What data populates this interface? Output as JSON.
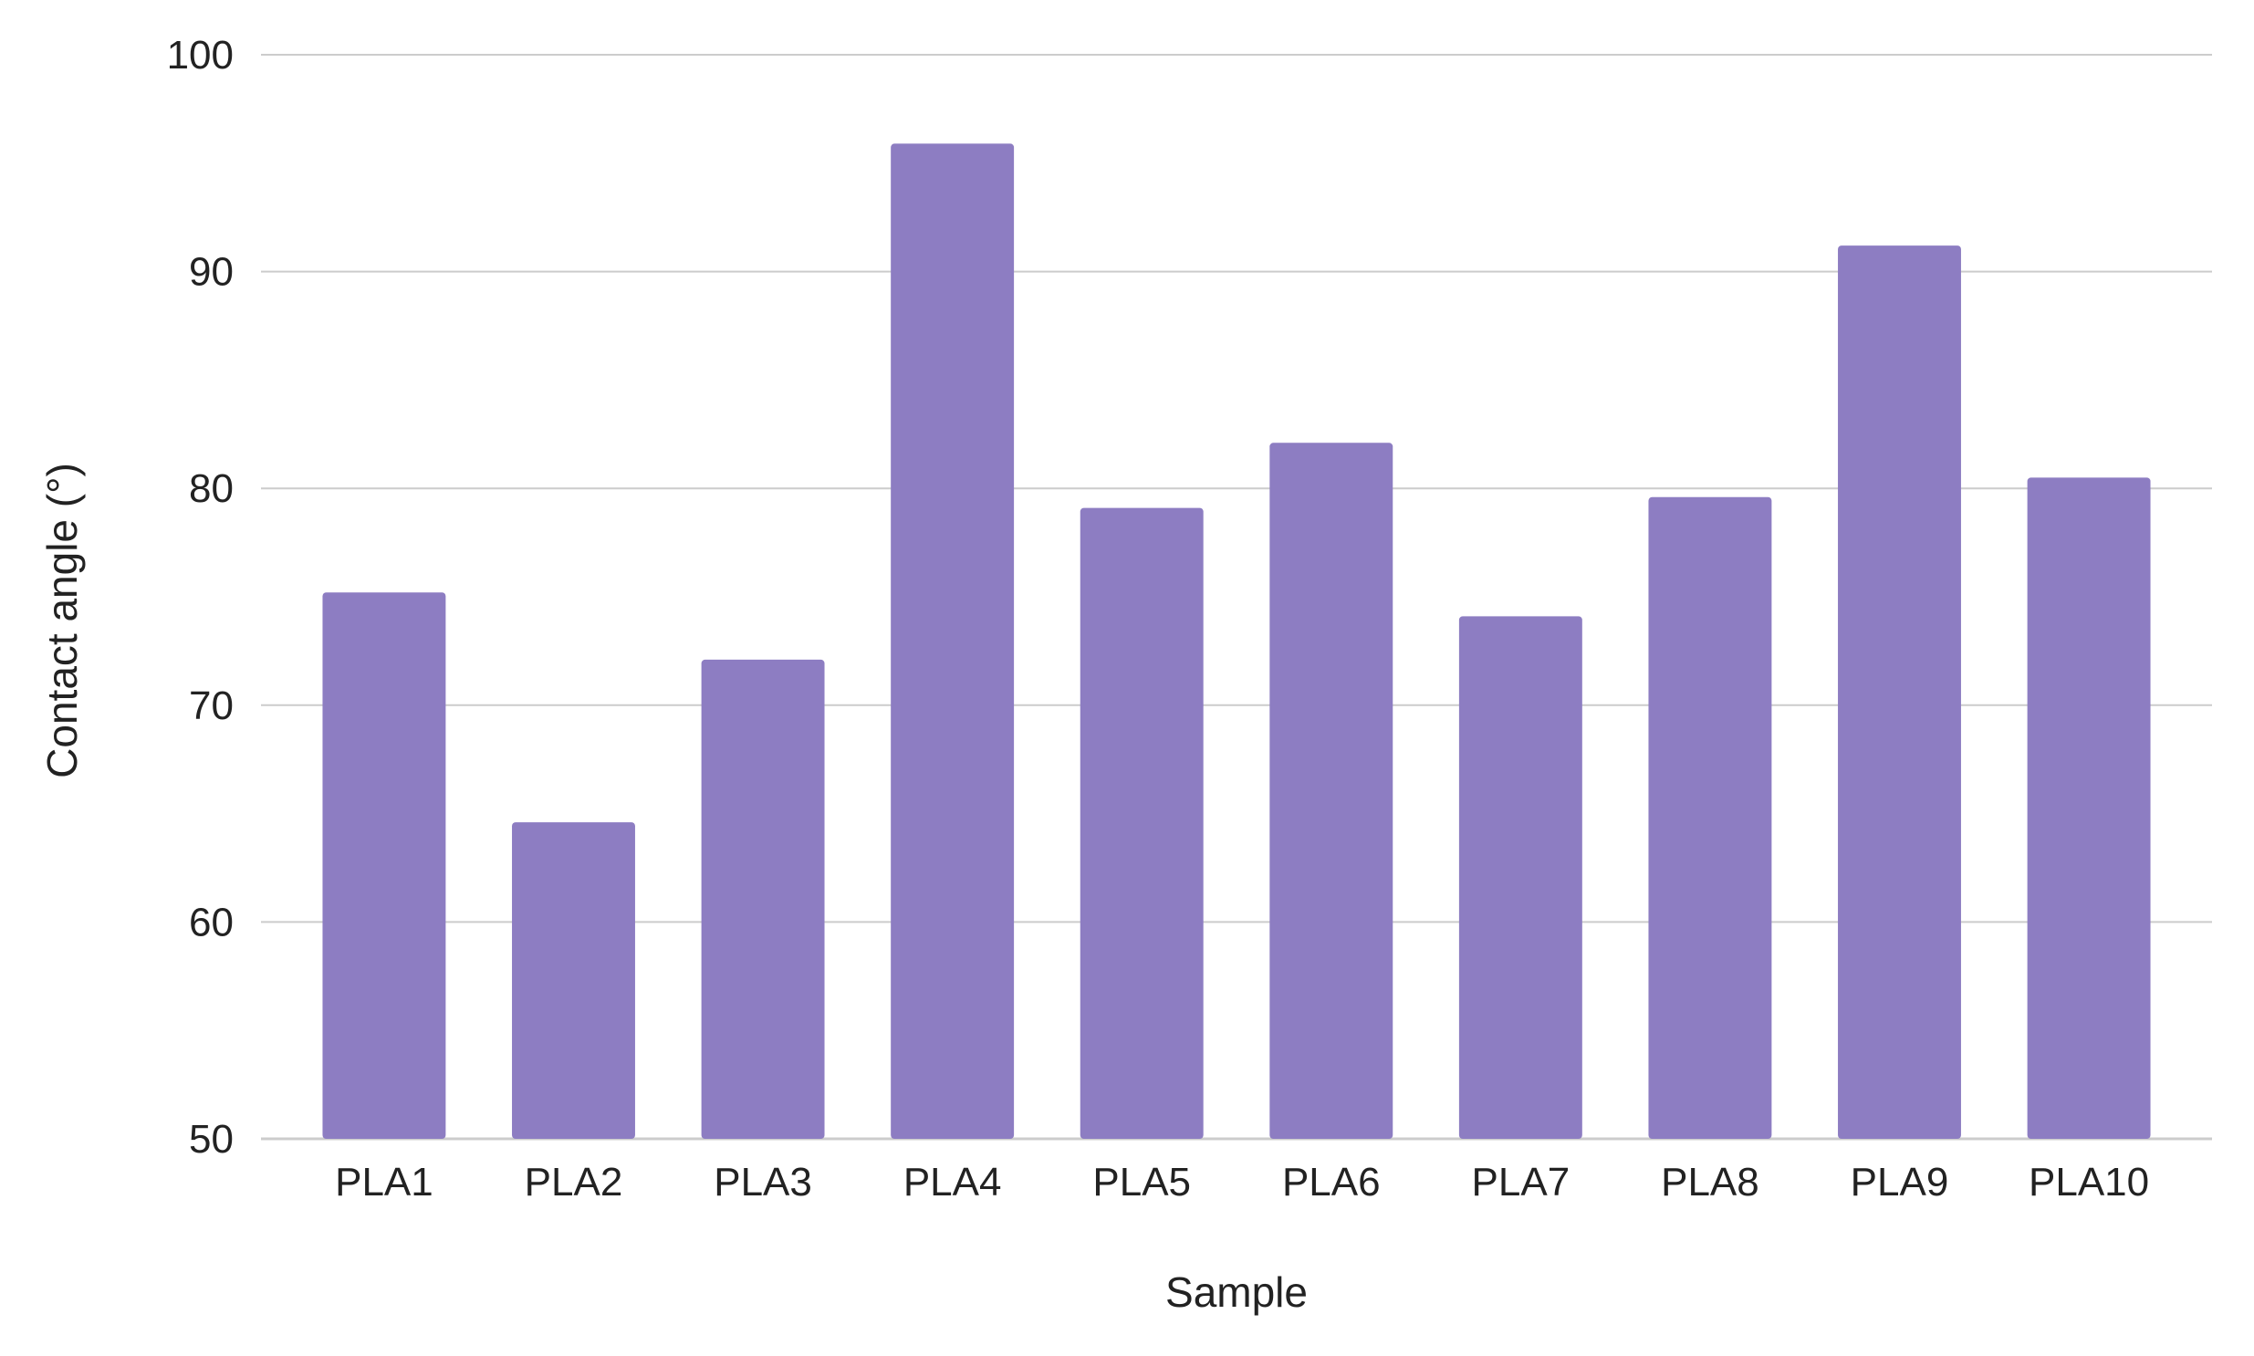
{
  "chart_data": {
    "type": "bar",
    "title": "",
    "xlabel": "Sample",
    "ylabel": "Contact angle (°)",
    "categories": [
      "PLA1",
      "PLA2",
      "PLA3",
      "PLA4",
      "PLA5",
      "PLA6",
      "PLA7",
      "PLA8",
      "PLA9",
      "PLA10"
    ],
    "values": [
      75.2,
      64.6,
      72.1,
      95.9,
      79.1,
      82.1,
      74.1,
      79.6,
      91.2,
      80.5
    ],
    "ylim": [
      50,
      100
    ],
    "yticks": [
      50,
      60,
      70,
      80,
      90,
      100
    ],
    "grid": true,
    "legend": "none",
    "bar_color": "#8d7dc2",
    "grid_color": "#cccccc"
  }
}
